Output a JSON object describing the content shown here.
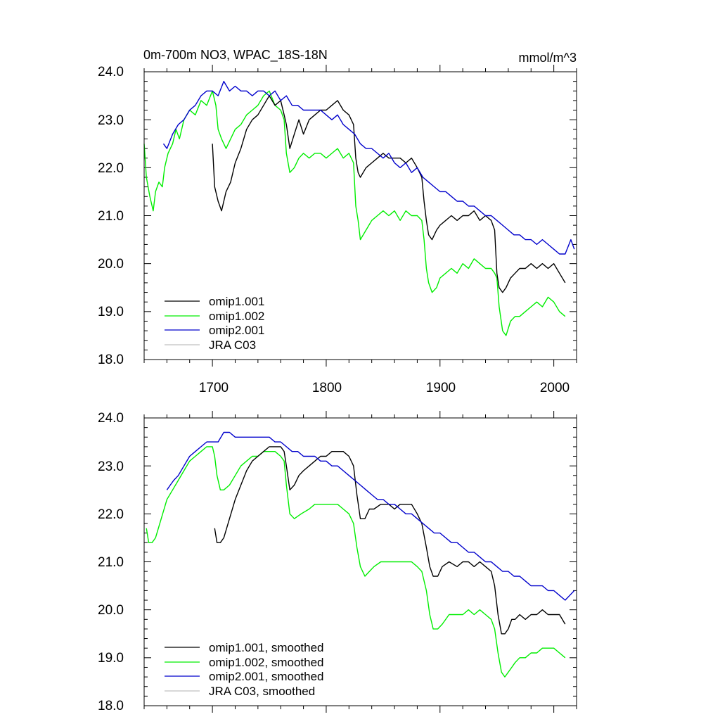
{
  "chart_data": [
    {
      "type": "line",
      "title": "0m-700m NO3, WPAC_18S-18N",
      "units": "mmol/m^3",
      "xlim": [
        1640,
        2020
      ],
      "ylim": [
        18.0,
        24.0
      ],
      "x_tick_labels": [
        "1700",
        "1800",
        "1900",
        "2000"
      ],
      "y_tick_labels": [
        "18.0",
        "19.0",
        "20.0",
        "21.0",
        "22.0",
        "23.0",
        "24.0"
      ],
      "legend_position": "bottom-left",
      "legend": [
        "omip1.001",
        "omip1.002",
        "omip2.001",
        "JRA C03"
      ],
      "colors": {
        "omip1.001": "#000000",
        "omip1.002": "#00ee00",
        "omip2.001": "#0000cc",
        "JRA C03": "#c0c0c0"
      },
      "series": [
        {
          "name": "omip1.002",
          "color": "#00ee00",
          "x": [
            1640,
            1642,
            1645,
            1648,
            1650,
            1653,
            1656,
            1658,
            1661,
            1665,
            1668,
            1671,
            1675,
            1680,
            1685,
            1690,
            1695,
            1700,
            1703,
            1705,
            1708,
            1712,
            1716,
            1720,
            1725,
            1730,
            1735,
            1740,
            1745,
            1750,
            1755,
            1760,
            1763,
            1765,
            1768,
            1772,
            1776,
            1780,
            1785,
            1790,
            1795,
            1800,
            1805,
            1810,
            1815,
            1820,
            1824,
            1826,
            1828,
            1830,
            1835,
            1840,
            1845,
            1850,
            1855,
            1860,
            1865,
            1870,
            1875,
            1880,
            1884,
            1886,
            1888,
            1890,
            1893,
            1897,
            1900,
            1905,
            1910,
            1915,
            1920,
            1925,
            1930,
            1935,
            1940,
            1945,
            1948,
            1950,
            1952,
            1955,
            1958,
            1962,
            1966,
            1970,
            1975,
            1980,
            1985,
            1990,
            1995,
            2000,
            2005,
            2010
          ],
          "y": [
            22.5,
            21.8,
            21.4,
            21.1,
            21.5,
            21.7,
            21.6,
            22.0,
            22.3,
            22.5,
            22.8,
            22.6,
            23.0,
            23.2,
            23.1,
            23.4,
            23.3,
            23.6,
            23.3,
            22.8,
            22.6,
            22.4,
            22.6,
            22.8,
            22.9,
            23.1,
            23.2,
            23.3,
            23.5,
            23.6,
            23.3,
            23.2,
            23.0,
            22.3,
            21.9,
            22.0,
            22.2,
            22.3,
            22.2,
            22.3,
            22.3,
            22.2,
            22.3,
            22.4,
            22.2,
            22.3,
            22.1,
            21.2,
            20.9,
            20.5,
            20.7,
            20.9,
            21.0,
            21.1,
            21.0,
            21.1,
            20.9,
            21.1,
            21.0,
            21.0,
            20.9,
            20.5,
            19.9,
            19.6,
            19.4,
            19.5,
            19.7,
            19.8,
            19.9,
            19.8,
            20.0,
            19.9,
            20.1,
            20.0,
            19.9,
            19.9,
            19.8,
            19.7,
            19.1,
            18.6,
            18.5,
            18.8,
            18.9,
            18.9,
            19.0,
            19.1,
            19.2,
            19.1,
            19.3,
            19.2,
            19.0,
            18.9
          ]
        },
        {
          "name": "omip1.001",
          "color": "#000000",
          "x": [
            1700,
            1702,
            1705,
            1708,
            1712,
            1716,
            1720,
            1725,
            1730,
            1735,
            1740,
            1745,
            1750,
            1755,
            1760,
            1763,
            1765,
            1768,
            1772,
            1776,
            1780,
            1785,
            1790,
            1795,
            1800,
            1805,
            1810,
            1815,
            1820,
            1824,
            1826,
            1828,
            1830,
            1835,
            1840,
            1845,
            1850,
            1855,
            1860,
            1865,
            1870,
            1875,
            1880,
            1884,
            1886,
            1888,
            1890,
            1893,
            1897,
            1900,
            1905,
            1910,
            1915,
            1920,
            1925,
            1930,
            1935,
            1940,
            1945,
            1948,
            1950,
            1952,
            1955,
            1958,
            1962,
            1966,
            1970,
            1975,
            1980,
            1985,
            1990,
            1995,
            2000,
            2005,
            2010
          ],
          "y": [
            22.5,
            21.6,
            21.3,
            21.1,
            21.5,
            21.7,
            22.1,
            22.4,
            22.8,
            23.0,
            23.1,
            23.3,
            23.5,
            23.3,
            23.4,
            23.1,
            22.9,
            22.4,
            22.7,
            23.0,
            22.7,
            23.0,
            23.1,
            23.2,
            23.2,
            23.3,
            23.4,
            23.2,
            23.1,
            22.9,
            22.2,
            21.9,
            21.8,
            22.0,
            22.1,
            22.2,
            22.3,
            22.2,
            22.2,
            22.2,
            22.1,
            22.2,
            22.0,
            21.8,
            21.3,
            20.9,
            20.6,
            20.5,
            20.7,
            20.8,
            20.9,
            21.0,
            20.9,
            21.0,
            21.0,
            21.1,
            20.9,
            21.0,
            20.9,
            20.7,
            19.8,
            19.5,
            19.4,
            19.5,
            19.7,
            19.8,
            19.9,
            19.9,
            20.0,
            19.9,
            20.0,
            19.9,
            20.0,
            19.8,
            19.6
          ]
        },
        {
          "name": "omip2.001",
          "color": "#0000cc",
          "x": [
            1657,
            1660,
            1665,
            1670,
            1675,
            1680,
            1685,
            1690,
            1695,
            1700,
            1705,
            1710,
            1715,
            1720,
            1725,
            1730,
            1735,
            1740,
            1745,
            1750,
            1755,
            1760,
            1765,
            1770,
            1775,
            1780,
            1785,
            1790,
            1795,
            1800,
            1805,
            1810,
            1815,
            1820,
            1825,
            1830,
            1835,
            1840,
            1845,
            1850,
            1855,
            1860,
            1865,
            1870,
            1875,
            1880,
            1885,
            1890,
            1895,
            1900,
            1905,
            1910,
            1915,
            1920,
            1925,
            1930,
            1935,
            1940,
            1945,
            1950,
            1955,
            1960,
            1965,
            1970,
            1975,
            1980,
            1985,
            1990,
            1995,
            2000,
            2005,
            2010,
            2015,
            2018
          ],
          "y": [
            22.5,
            22.4,
            22.7,
            22.9,
            23.0,
            23.2,
            23.3,
            23.5,
            23.6,
            23.6,
            23.5,
            23.8,
            23.6,
            23.7,
            23.6,
            23.6,
            23.5,
            23.6,
            23.6,
            23.5,
            23.6,
            23.4,
            23.5,
            23.3,
            23.3,
            23.2,
            23.2,
            23.2,
            23.2,
            23.1,
            23.0,
            23.1,
            22.9,
            22.8,
            22.7,
            22.5,
            22.4,
            22.4,
            22.3,
            22.2,
            22.3,
            22.1,
            22.0,
            22.1,
            21.9,
            22.0,
            21.8,
            21.7,
            21.6,
            21.5,
            21.5,
            21.4,
            21.3,
            21.3,
            21.2,
            21.2,
            21.1,
            21.0,
            21.0,
            20.9,
            20.8,
            20.7,
            20.6,
            20.6,
            20.5,
            20.5,
            20.4,
            20.5,
            20.4,
            20.3,
            20.2,
            20.2,
            20.5,
            20.3
          ]
        }
      ]
    },
    {
      "type": "line",
      "xlim": [
        1640,
        2020
      ],
      "ylim": [
        18.0,
        24.0
      ],
      "y_tick_labels": [
        "18.0",
        "19.0",
        "20.0",
        "21.0",
        "22.0",
        "23.0",
        "24.0"
      ],
      "legend_position": "bottom-left",
      "legend": [
        "omip1.001, smoothed",
        "omip1.002, smoothed",
        "omip2.001, smoothed",
        "JRA C03, smoothed"
      ],
      "colors": {
        "omip1.001": "#000000",
        "omip1.002": "#00ee00",
        "omip2.001": "#0000cc",
        "JRA C03": "#c0c0c0"
      },
      "series": [
        {
          "name": "omip1.002, smoothed",
          "color": "#00ee00",
          "x": [
            1642,
            1644,
            1647,
            1650,
            1655,
            1660,
            1665,
            1670,
            1675,
            1680,
            1685,
            1690,
            1695,
            1700,
            1702,
            1704,
            1707,
            1710,
            1715,
            1720,
            1725,
            1730,
            1735,
            1740,
            1745,
            1750,
            1755,
            1760,
            1763,
            1765,
            1768,
            1772,
            1778,
            1785,
            1790,
            1795,
            1800,
            1805,
            1810,
            1815,
            1820,
            1824,
            1827,
            1830,
            1834,
            1838,
            1842,
            1848,
            1855,
            1860,
            1865,
            1870,
            1875,
            1880,
            1884,
            1888,
            1891,
            1894,
            1898,
            1902,
            1908,
            1915,
            1920,
            1925,
            1930,
            1935,
            1940,
            1945,
            1948,
            1951,
            1954,
            1957,
            1960,
            1963,
            1966,
            1970,
            1975,
            1980,
            1985,
            1990,
            1995,
            2000,
            2005,
            2010
          ],
          "y": [
            21.7,
            21.4,
            21.4,
            21.5,
            21.9,
            22.3,
            22.5,
            22.7,
            22.9,
            23.1,
            23.2,
            23.3,
            23.4,
            23.4,
            23.2,
            22.8,
            22.5,
            22.5,
            22.6,
            22.8,
            23.0,
            23.1,
            23.2,
            23.2,
            23.3,
            23.3,
            23.3,
            23.2,
            23.1,
            22.6,
            22.0,
            21.9,
            22.0,
            22.1,
            22.2,
            22.2,
            22.2,
            22.2,
            22.2,
            22.1,
            22.0,
            21.8,
            21.3,
            20.9,
            20.7,
            20.8,
            20.9,
            21.0,
            21.0,
            21.0,
            21.0,
            21.0,
            21.0,
            20.9,
            20.8,
            20.4,
            19.9,
            19.6,
            19.6,
            19.7,
            19.9,
            19.9,
            19.9,
            20.0,
            19.9,
            20.0,
            19.9,
            19.8,
            19.6,
            19.1,
            18.7,
            18.6,
            18.7,
            18.8,
            18.9,
            19.0,
            19.0,
            19.1,
            19.1,
            19.2,
            19.2,
            19.2,
            19.1,
            19.0
          ]
        },
        {
          "name": "omip1.001, smoothed",
          "color": "#000000",
          "x": [
            1702,
            1704,
            1707,
            1710,
            1715,
            1720,
            1725,
            1730,
            1735,
            1740,
            1745,
            1750,
            1755,
            1760,
            1763,
            1765,
            1768,
            1772,
            1776,
            1780,
            1785,
            1790,
            1795,
            1800,
            1805,
            1810,
            1815,
            1820,
            1824,
            1827,
            1830,
            1834,
            1838,
            1842,
            1848,
            1855,
            1860,
            1865,
            1870,
            1875,
            1880,
            1884,
            1888,
            1891,
            1894,
            1898,
            1902,
            1908,
            1915,
            1920,
            1925,
            1930,
            1935,
            1940,
            1945,
            1948,
            1951,
            1954,
            1957,
            1960,
            1963,
            1966,
            1970,
            1975,
            1980,
            1985,
            1990,
            1995,
            2000,
            2005,
            2010
          ],
          "y": [
            21.7,
            21.4,
            21.4,
            21.5,
            21.9,
            22.3,
            22.6,
            22.9,
            23.1,
            23.2,
            23.3,
            23.4,
            23.4,
            23.4,
            23.3,
            23.0,
            22.5,
            22.6,
            22.8,
            22.9,
            23.0,
            23.1,
            23.2,
            23.2,
            23.3,
            23.3,
            23.3,
            23.2,
            23.0,
            22.4,
            21.9,
            21.9,
            22.1,
            22.1,
            22.2,
            22.2,
            22.1,
            22.2,
            22.2,
            22.2,
            22.0,
            21.8,
            21.3,
            20.9,
            20.7,
            20.7,
            20.9,
            21.0,
            20.9,
            21.0,
            21.0,
            20.9,
            21.0,
            20.9,
            20.8,
            20.5,
            19.9,
            19.5,
            19.5,
            19.6,
            19.8,
            19.8,
            19.9,
            19.8,
            19.9,
            19.9,
            20.0,
            19.9,
            19.9,
            19.9,
            19.7
          ]
        },
        {
          "name": "omip2.001, smoothed",
          "color": "#0000cc",
          "x": [
            1660,
            1663,
            1666,
            1670,
            1675,
            1680,
            1685,
            1690,
            1695,
            1700,
            1705,
            1710,
            1715,
            1720,
            1725,
            1730,
            1735,
            1740,
            1745,
            1750,
            1755,
            1760,
            1765,
            1770,
            1775,
            1780,
            1785,
            1790,
            1795,
            1800,
            1805,
            1810,
            1815,
            1820,
            1825,
            1830,
            1835,
            1840,
            1845,
            1850,
            1855,
            1860,
            1865,
            1870,
            1875,
            1880,
            1885,
            1890,
            1895,
            1900,
            1905,
            1910,
            1915,
            1920,
            1925,
            1930,
            1935,
            1940,
            1945,
            1950,
            1955,
            1960,
            1965,
            1970,
            1975,
            1980,
            1985,
            1990,
            1995,
            2000,
            2005,
            2010,
            2014,
            2018
          ],
          "y": [
            22.5,
            22.6,
            22.7,
            22.8,
            23.0,
            23.2,
            23.3,
            23.4,
            23.5,
            23.5,
            23.5,
            23.7,
            23.7,
            23.6,
            23.6,
            23.6,
            23.6,
            23.6,
            23.6,
            23.6,
            23.5,
            23.5,
            23.4,
            23.3,
            23.3,
            23.2,
            23.2,
            23.2,
            23.1,
            23.1,
            23.0,
            23.0,
            22.9,
            22.8,
            22.7,
            22.6,
            22.5,
            22.4,
            22.3,
            22.3,
            22.2,
            22.2,
            22.1,
            22.0,
            22.0,
            21.9,
            21.8,
            21.7,
            21.6,
            21.6,
            21.5,
            21.4,
            21.4,
            21.3,
            21.2,
            21.2,
            21.1,
            21.0,
            21.0,
            20.9,
            20.8,
            20.8,
            20.7,
            20.7,
            20.6,
            20.5,
            20.5,
            20.5,
            20.4,
            20.4,
            20.3,
            20.2,
            20.3,
            20.4
          ]
        }
      ]
    }
  ]
}
